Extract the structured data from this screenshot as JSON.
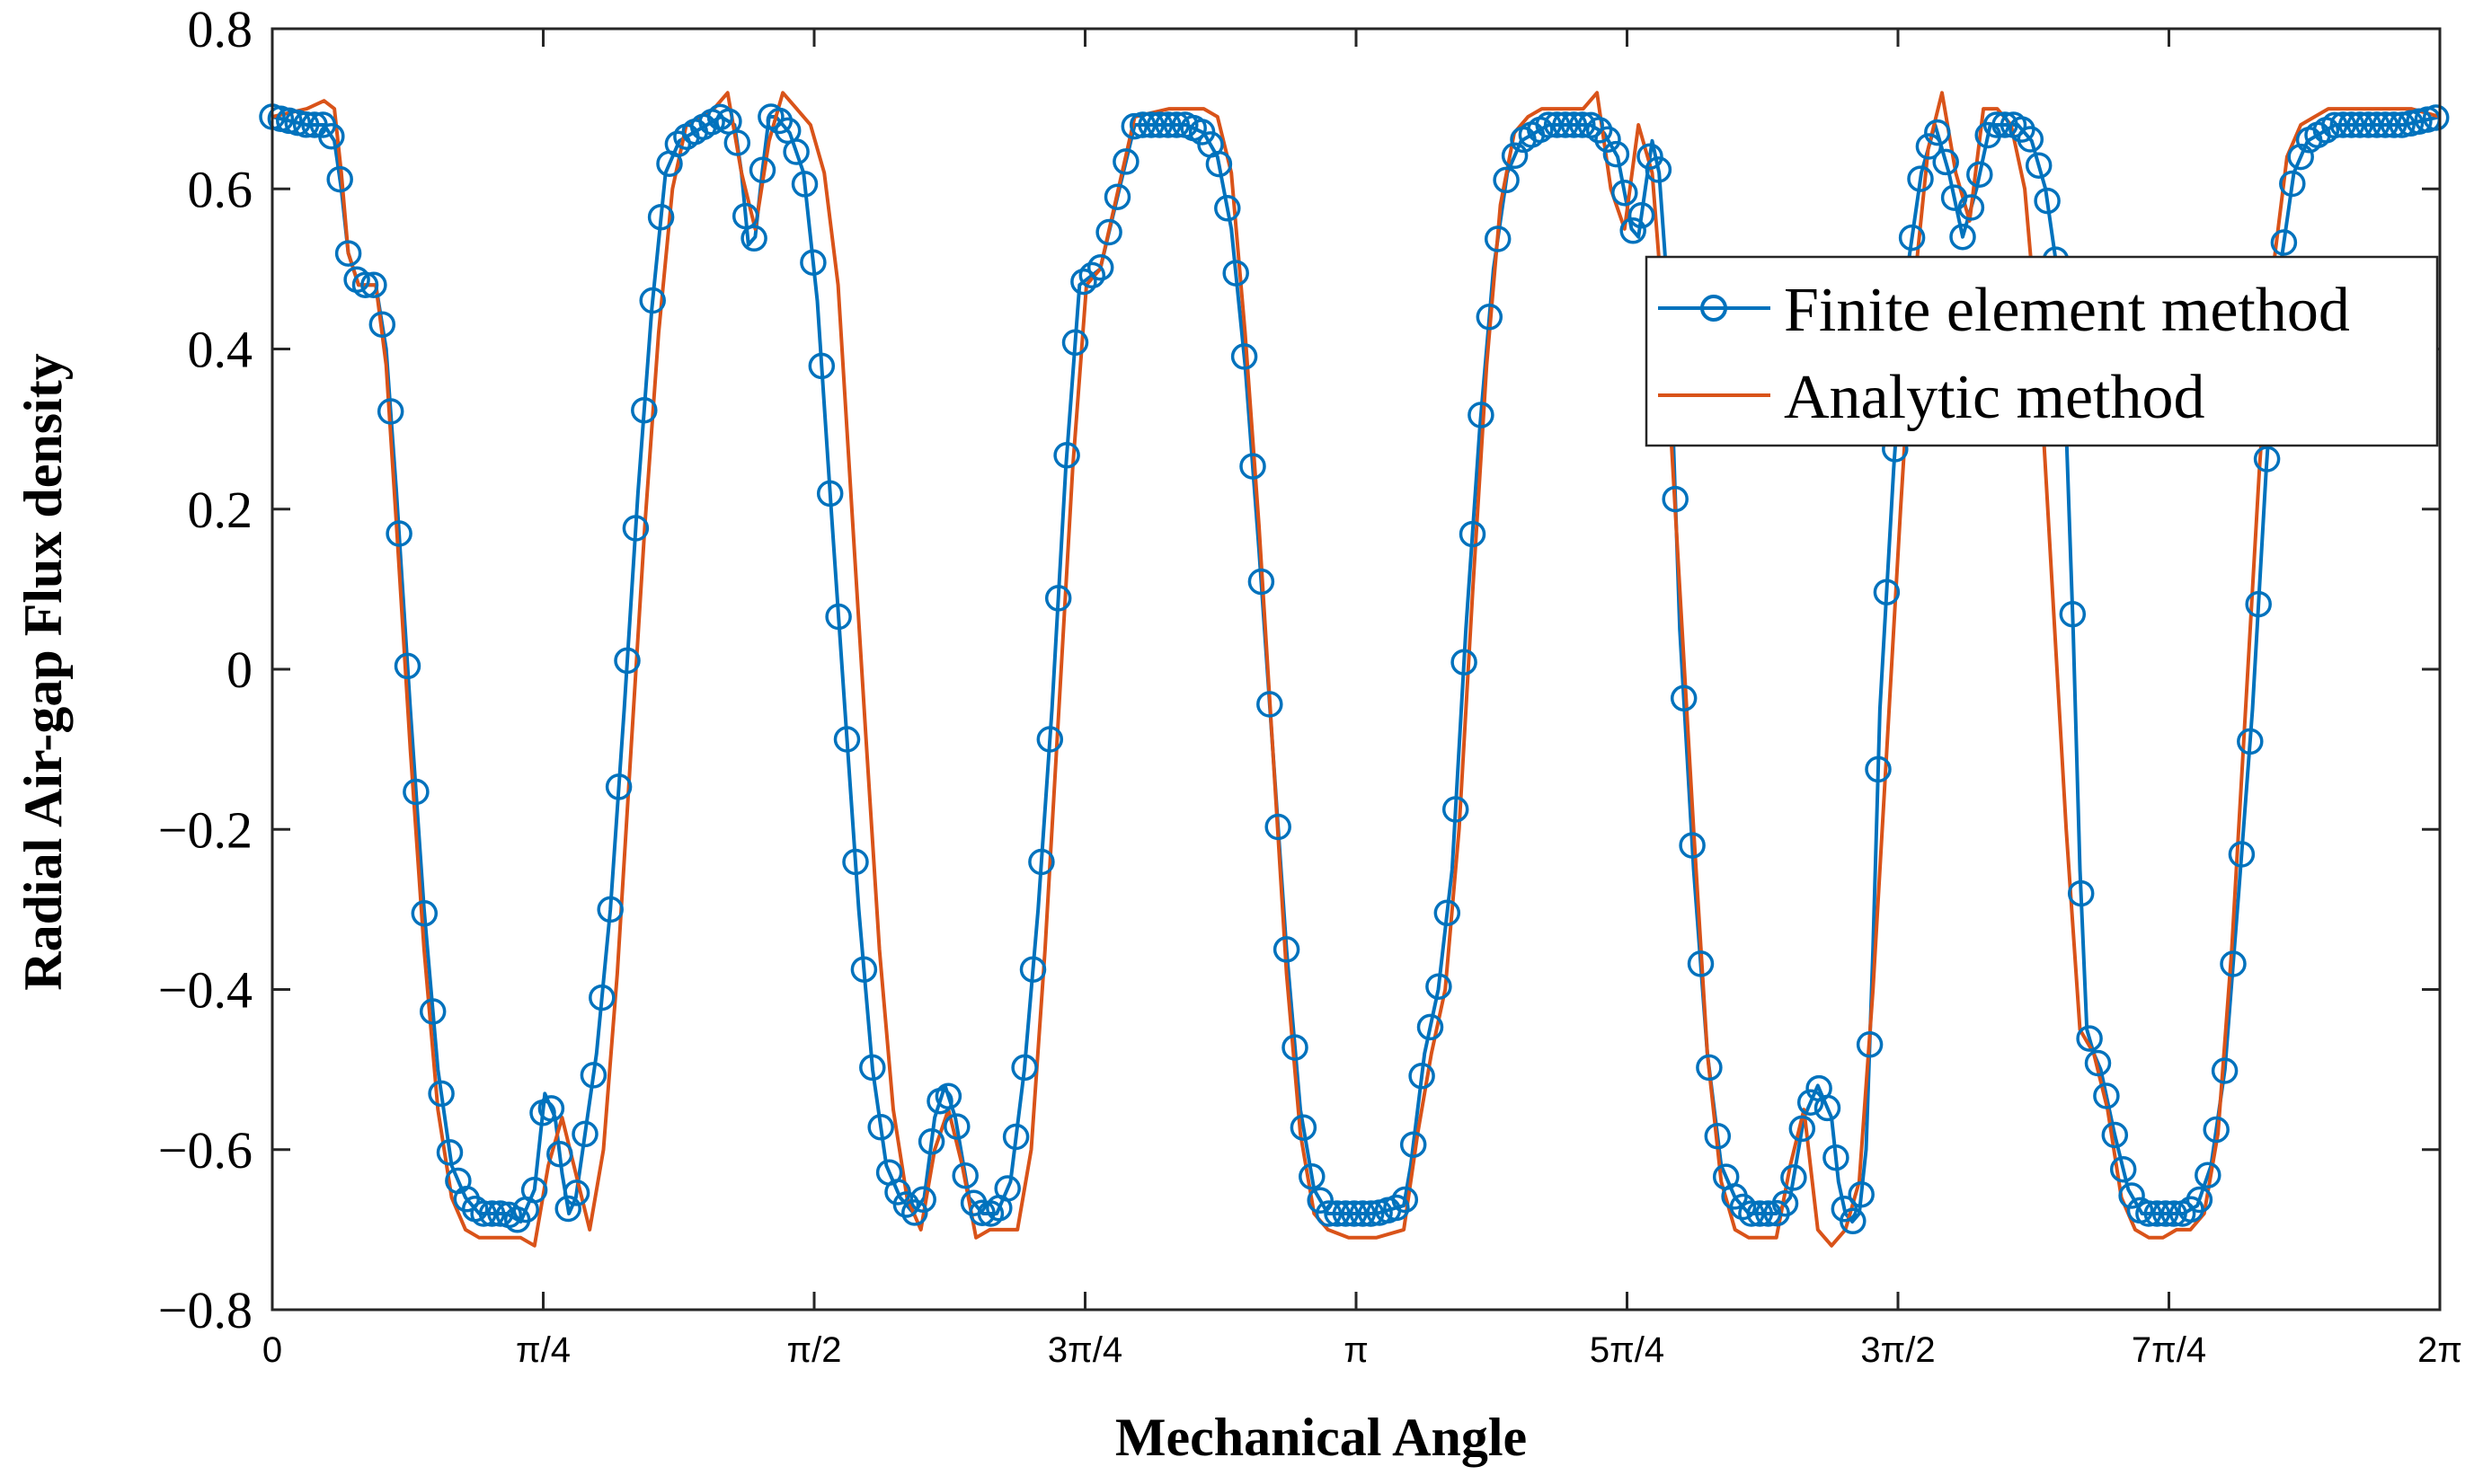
{
  "chart_data": {
    "type": "line",
    "title": "",
    "xlabel": "Mechanical Angle",
    "ylabel": "Radial Air-gap Flux density",
    "xlim": [
      0,
      6.283185307
    ],
    "ylim": [
      -0.8,
      0.8
    ],
    "xticks": {
      "values": [
        0,
        0.785398,
        1.570796,
        2.356194,
        3.141593,
        3.926991,
        4.712389,
        5.497787,
        6.283185
      ],
      "labels": [
        "0",
        "π/4",
        "π/2",
        "3π/4",
        "π",
        "5π/4",
        "3π/2",
        "7π/4",
        "2π"
      ]
    },
    "yticks": {
      "values": [
        -0.8,
        -0.6,
        -0.4,
        -0.2,
        0,
        0.2,
        0.4,
        0.6,
        0.8
      ],
      "labels": [
        "−0.8",
        "−0.6",
        "−0.4",
        "−0.2",
        "0",
        "0.2",
        "0.4",
        "0.6",
        "0.8"
      ]
    },
    "grid": false,
    "legend_position": "top-right",
    "series": [
      {
        "name": "Finite element method",
        "style": "line-with-circle-markers",
        "color": "#0072BD",
        "x": [
          0.0,
          0.1,
          0.15,
          0.18,
          0.2,
          0.22,
          0.25,
          0.3,
          0.33,
          0.36,
          0.4,
          0.44,
          0.48,
          0.52,
          0.56,
          0.6,
          0.64,
          0.68,
          0.72,
          0.76,
          0.79,
          0.82,
          0.84,
          0.86,
          0.88,
          0.9,
          0.94,
          0.98,
          1.02,
          1.06,
          1.1,
          1.14,
          1.18,
          1.22,
          1.26,
          1.3,
          1.34,
          1.36,
          1.38,
          1.4,
          1.42,
          1.44,
          1.46,
          1.48,
          1.5,
          1.54,
          1.58,
          1.62,
          1.66,
          1.7,
          1.74,
          1.78,
          1.82,
          1.86,
          1.89,
          1.92,
          1.95,
          1.98,
          2.02,
          2.06,
          2.1,
          2.14,
          2.18,
          2.22,
          2.26,
          2.3,
          2.34,
          2.4,
          2.5,
          2.6,
          2.65,
          2.7,
          2.74,
          2.78,
          2.82,
          2.86,
          2.9,
          2.94,
          2.98,
          3.02,
          3.06,
          3.12,
          3.2,
          3.28,
          3.3,
          3.32,
          3.34,
          3.38,
          3.42,
          3.46,
          3.5,
          3.54,
          3.58,
          3.62,
          3.66,
          3.7,
          3.74,
          3.78,
          3.82,
          3.86,
          3.9,
          3.94,
          3.96,
          3.98,
          4.0,
          4.02,
          4.04,
          4.06,
          4.08,
          4.12,
          4.16,
          4.2,
          4.24,
          4.28,
          4.32,
          4.36,
          4.4,
          4.44,
          4.48,
          4.52,
          4.54,
          4.56,
          4.58,
          4.6,
          4.62,
          4.64,
          4.66,
          4.7,
          4.74,
          4.78,
          4.82,
          4.86,
          4.9,
          4.94,
          4.98,
          5.02,
          5.06,
          5.1,
          5.14,
          5.18,
          5.2,
          5.22,
          5.24,
          5.26,
          5.28,
          5.3,
          5.34,
          5.38,
          5.42,
          5.46,
          5.5,
          5.54,
          5.58,
          5.62,
          5.66,
          5.7,
          5.74,
          5.78,
          5.82,
          5.86,
          5.9,
          5.94,
          5.98,
          6.02,
          6.06,
          6.1,
          6.14,
          6.18,
          6.283
        ],
        "y": [
          0.69,
          0.68,
          0.68,
          0.66,
          0.6,
          0.52,
          0.48,
          0.48,
          0.4,
          0.22,
          -0.05,
          -0.3,
          -0.5,
          -0.62,
          -0.66,
          -0.68,
          -0.68,
          -0.68,
          -0.69,
          -0.65,
          -0.53,
          -0.56,
          -0.63,
          -0.68,
          -0.66,
          -0.6,
          -0.48,
          -0.3,
          -0.05,
          0.22,
          0.45,
          0.62,
          0.66,
          0.67,
          0.68,
          0.69,
          0.68,
          0.62,
          0.53,
          0.54,
          0.62,
          0.69,
          0.69,
          0.68,
          0.67,
          0.62,
          0.46,
          0.2,
          -0.05,
          -0.3,
          -0.5,
          -0.62,
          -0.66,
          -0.68,
          -0.66,
          -0.56,
          -0.52,
          -0.56,
          -0.66,
          -0.68,
          -0.68,
          -0.64,
          -0.5,
          -0.3,
          -0.05,
          0.25,
          0.48,
          0.5,
          0.68,
          0.68,
          0.68,
          0.67,
          0.64,
          0.55,
          0.38,
          0.15,
          -0.1,
          -0.35,
          -0.55,
          -0.65,
          -0.68,
          -0.68,
          -0.68,
          -0.67,
          -0.62,
          -0.55,
          -0.48,
          -0.4,
          -0.25,
          0.05,
          0.3,
          0.5,
          0.62,
          0.66,
          0.67,
          0.68,
          0.68,
          0.68,
          0.68,
          0.67,
          0.64,
          0.55,
          0.54,
          0.6,
          0.66,
          0.62,
          0.5,
          0.3,
          0.05,
          -0.25,
          -0.48,
          -0.62,
          -0.66,
          -0.68,
          -0.68,
          -0.68,
          -0.66,
          -0.56,
          -0.52,
          -0.56,
          -0.64,
          -0.68,
          -0.69,
          -0.68,
          -0.6,
          -0.35,
          -0.05,
          0.25,
          0.5,
          0.62,
          0.68,
          0.62,
          0.54,
          0.6,
          0.68,
          0.68,
          0.68,
          0.66,
          0.6,
          0.48,
          0.3,
          0.05,
          -0.25,
          -0.45,
          -0.48,
          -0.5,
          -0.58,
          -0.65,
          -0.68,
          -0.68,
          -0.68,
          -0.68,
          -0.67,
          -0.62,
          -0.5,
          -0.28,
          -0.05,
          0.25,
          0.5,
          0.62,
          0.66,
          0.67,
          0.68,
          0.68,
          0.68,
          0.68,
          0.68,
          0.68,
          0.69
        ]
      },
      {
        "name": "Analytic method",
        "style": "line",
        "color": "#D95319",
        "x": [
          0.0,
          0.1,
          0.15,
          0.18,
          0.2,
          0.22,
          0.25,
          0.3,
          0.33,
          0.36,
          0.4,
          0.44,
          0.48,
          0.52,
          0.56,
          0.6,
          0.64,
          0.68,
          0.72,
          0.76,
          0.8,
          0.84,
          0.88,
          0.92,
          0.96,
          1.0,
          1.04,
          1.08,
          1.12,
          1.16,
          1.2,
          1.24,
          1.28,
          1.32,
          1.36,
          1.4,
          1.44,
          1.48,
          1.52,
          1.56,
          1.6,
          1.64,
          1.68,
          1.72,
          1.76,
          1.8,
          1.84,
          1.88,
          1.92,
          1.96,
          2.0,
          2.04,
          2.08,
          2.12,
          2.16,
          2.2,
          2.24,
          2.28,
          2.32,
          2.36,
          2.4,
          2.5,
          2.6,
          2.65,
          2.7,
          2.74,
          2.78,
          2.82,
          2.86,
          2.9,
          2.94,
          2.98,
          3.02,
          3.06,
          3.12,
          3.2,
          3.28,
          3.32,
          3.36,
          3.4,
          3.44,
          3.48,
          3.52,
          3.56,
          3.6,
          3.64,
          3.68,
          3.72,
          3.76,
          3.8,
          3.84,
          3.88,
          3.92,
          3.96,
          4.0,
          4.04,
          4.08,
          4.12,
          4.16,
          4.2,
          4.24,
          4.28,
          4.32,
          4.36,
          4.4,
          4.44,
          4.48,
          4.52,
          4.56,
          4.6,
          4.64,
          4.68,
          4.72,
          4.76,
          4.8,
          4.84,
          4.88,
          4.92,
          4.96,
          5.0,
          5.04,
          5.08,
          5.12,
          5.16,
          5.2,
          5.24,
          5.28,
          5.32,
          5.36,
          5.4,
          5.44,
          5.48,
          5.52,
          5.56,
          5.6,
          5.64,
          5.68,
          5.72,
          5.76,
          5.8,
          5.84,
          5.88,
          5.92,
          5.96,
          6.0,
          6.04,
          6.08,
          6.12,
          6.16,
          6.2,
          6.283
        ],
        "y": [
          0.69,
          0.7,
          0.71,
          0.7,
          0.62,
          0.52,
          0.48,
          0.48,
          0.38,
          0.18,
          -0.1,
          -0.35,
          -0.55,
          -0.66,
          -0.7,
          -0.71,
          -0.71,
          -0.71,
          -0.71,
          -0.72,
          -0.62,
          -0.56,
          -0.63,
          -0.7,
          -0.6,
          -0.38,
          -0.1,
          0.18,
          0.42,
          0.6,
          0.68,
          0.69,
          0.7,
          0.72,
          0.62,
          0.55,
          0.66,
          0.72,
          0.7,
          0.68,
          0.62,
          0.48,
          0.2,
          -0.08,
          -0.35,
          -0.55,
          -0.66,
          -0.7,
          -0.6,
          -0.55,
          -0.62,
          -0.71,
          -0.7,
          -0.7,
          -0.7,
          -0.6,
          -0.35,
          -0.05,
          0.25,
          0.48,
          0.5,
          0.69,
          0.7,
          0.7,
          0.7,
          0.69,
          0.62,
          0.42,
          0.18,
          -0.1,
          -0.38,
          -0.58,
          -0.68,
          -0.7,
          -0.71,
          -0.71,
          -0.7,
          -0.58,
          -0.48,
          -0.4,
          -0.2,
          0.1,
          0.38,
          0.58,
          0.67,
          0.69,
          0.7,
          0.7,
          0.7,
          0.7,
          0.72,
          0.6,
          0.55,
          0.68,
          0.62,
          0.4,
          0.1,
          -0.2,
          -0.48,
          -0.64,
          -0.7,
          -0.71,
          -0.71,
          -0.71,
          -0.62,
          -0.55,
          -0.7,
          -0.72,
          -0.7,
          -0.64,
          -0.4,
          -0.1,
          0.2,
          0.48,
          0.65,
          0.72,
          0.62,
          0.56,
          0.7,
          0.7,
          0.68,
          0.6,
          0.4,
          0.1,
          -0.2,
          -0.45,
          -0.48,
          -0.55,
          -0.66,
          -0.7,
          -0.71,
          -0.71,
          -0.7,
          -0.7,
          -0.68,
          -0.58,
          -0.35,
          -0.05,
          0.25,
          0.5,
          0.64,
          0.68,
          0.69,
          0.7,
          0.7,
          0.7,
          0.7,
          0.7,
          0.7,
          0.7,
          0.69
        ]
      }
    ]
  }
}
